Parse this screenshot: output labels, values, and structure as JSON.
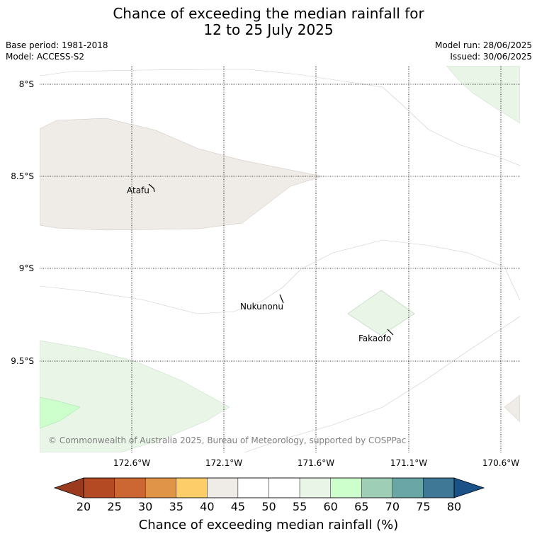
{
  "title": {
    "line1": "Chance of exceeding the median rainfall for",
    "line2": "12 to 25 July 2025"
  },
  "meta": {
    "base_period": "Base period: 1981-2018",
    "model": "Model: ACCESS-S2",
    "model_run": "Model run: 28/06/2025",
    "issued": "Issued: 30/06/2025"
  },
  "map": {
    "lat_labels": [
      "8°S",
      "8.5°S",
      "9°S",
      "9.5°S"
    ],
    "lon_labels": [
      "172.6°W",
      "172.1°W",
      "171.6°W",
      "171.1°W",
      "170.6°W"
    ],
    "places": [
      "Atafu",
      "Nukunonu",
      "Fakaofo"
    ],
    "copyright": "© Commonwealth of Australia 2025, Bureau of Meteorology, supported by COSPPac"
  },
  "colorbar": {
    "ticks": [
      "20",
      "25",
      "30",
      "35",
      "40",
      "45",
      "50",
      "55",
      "60",
      "65",
      "70",
      "75",
      "80"
    ],
    "colors": [
      "#b34a24",
      "#cc6633",
      "#e09448",
      "#fdcd6a",
      "#efebe7",
      "#ffffff",
      "#ffffff",
      "#e8f5e7",
      "#ccffcc",
      "#9ecfb6",
      "#6aa6a6",
      "#3f7896"
    ],
    "under_color": "#9b3a1e",
    "over_color": "#1a5287",
    "label": "Chance of exceeding median rainfall (%)"
  }
}
